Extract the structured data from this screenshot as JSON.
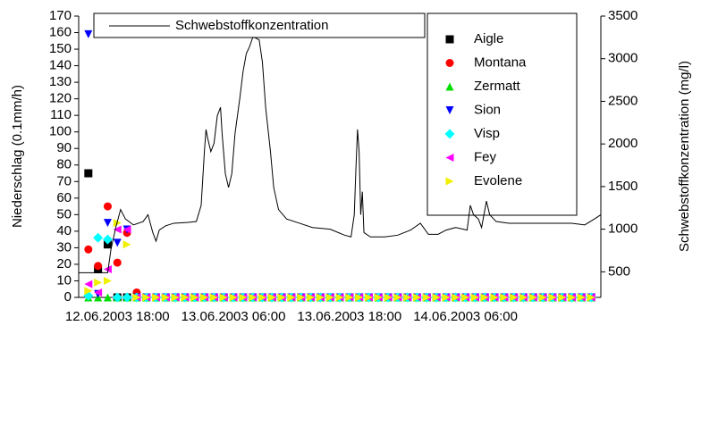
{
  "chart_data": [
    {
      "type": "scatter",
      "ylabel": "Niederschlag (0.1mm/h)",
      "xlim": [
        "2003-06-12T14:00",
        "2003-06-14T20:00"
      ],
      "xticks": [
        {
          "value": "2003-06-12T18:00",
          "label": "12.06.2003 18:00"
        },
        {
          "value": "2003-06-13T06:00",
          "label": "13.06.2003 06:00"
        },
        {
          "value": "2003-06-13T18:00",
          "label": "13.06.2003 18:00"
        },
        {
          "value": "2003-06-14T06:00",
          "label": "14.06.2003 06:00"
        }
      ],
      "ylim": [
        0,
        170
      ],
      "yticks": [
        0,
        10,
        20,
        30,
        40,
        50,
        60,
        70,
        80,
        90,
        100,
        110,
        120,
        130,
        140,
        150,
        160,
        170
      ],
      "x": [
        "2003-06-12T15:00",
        "2003-06-12T16:00",
        "2003-06-12T17:00",
        "2003-06-12T18:00",
        "2003-06-12T19:00",
        "2003-06-12T20:00",
        "2003-06-12T21:00",
        "2003-06-12T22:00",
        "2003-06-12T23:00",
        "2003-06-13T00:00",
        "2003-06-13T01:00",
        "2003-06-13T02:00",
        "2003-06-13T03:00",
        "2003-06-13T04:00",
        "2003-06-13T05:00",
        "2003-06-13T06:00",
        "2003-06-13T07:00",
        "2003-06-13T08:00",
        "2003-06-13T09:00",
        "2003-06-13T10:00",
        "2003-06-13T11:00",
        "2003-06-13T12:00",
        "2003-06-13T13:00",
        "2003-06-13T14:00",
        "2003-06-13T15:00",
        "2003-06-13T16:00",
        "2003-06-13T17:00",
        "2003-06-13T18:00",
        "2003-06-13T19:00",
        "2003-06-13T20:00",
        "2003-06-13T21:00",
        "2003-06-13T22:00",
        "2003-06-13T23:00",
        "2003-06-14T00:00",
        "2003-06-14T01:00",
        "2003-06-14T02:00",
        "2003-06-14T03:00",
        "2003-06-14T04:00",
        "2003-06-14T05:00",
        "2003-06-14T06:00",
        "2003-06-14T07:00",
        "2003-06-14T08:00",
        "2003-06-14T09:00",
        "2003-06-14T10:00",
        "2003-06-14T11:00",
        "2003-06-14T12:00",
        "2003-06-14T13:00",
        "2003-06-14T14:00",
        "2003-06-14T15:00",
        "2003-06-14T16:00",
        "2003-06-14T17:00",
        "2003-06-14T18:00",
        "2003-06-14T19:00"
      ],
      "series": [
        {
          "name": "Aigle",
          "color": "#000000",
          "marker": "square",
          "values": [
            75,
            17,
            32,
            0,
            0,
            0,
            0,
            0,
            0,
            0,
            0,
            0,
            0,
            0,
            0,
            0,
            0,
            0,
            0,
            0,
            0,
            0,
            0,
            0,
            0,
            0,
            0,
            0,
            0,
            0,
            0,
            0,
            0,
            0,
            0,
            0,
            0,
            0,
            0,
            0,
            0,
            0,
            0,
            0,
            0,
            0,
            0,
            0,
            0,
            0,
            0,
            0,
            0
          ]
        },
        {
          "name": "Montana",
          "color": "#ff0000",
          "marker": "circle",
          "values": [
            29,
            19,
            55,
            21,
            39,
            3,
            0,
            0,
            0,
            0,
            0,
            0,
            0,
            0,
            0,
            0,
            0,
            0,
            0,
            0,
            0,
            0,
            0,
            0,
            0,
            0,
            0,
            0,
            0,
            0,
            0,
            0,
            0,
            0,
            0,
            0,
            0,
            0,
            0,
            0,
            0,
            0,
            0,
            0,
            0,
            0,
            0,
            0,
            0,
            0,
            0,
            0,
            0
          ]
        },
        {
          "name": "Zermatt",
          "color": "#00e000",
          "marker": "triangle-up",
          "values": [
            0,
            0,
            0,
            0,
            0,
            0,
            0,
            0,
            0,
            0,
            0,
            0,
            0,
            0,
            0,
            0,
            0,
            0,
            0,
            0,
            0,
            0,
            0,
            0,
            0,
            0,
            0,
            0,
            0,
            0,
            0,
            0,
            0,
            0,
            0,
            0,
            0,
            0,
            0,
            0,
            0,
            0,
            0,
            0,
            0,
            0,
            0,
            0,
            0,
            0,
            0,
            0,
            0
          ]
        },
        {
          "name": "Sion",
          "color": "#0000ff",
          "marker": "triangle-down",
          "values": [
            159,
            2,
            45,
            33,
            41,
            0,
            0,
            0,
            0,
            0,
            0,
            0,
            0,
            0,
            0,
            0,
            0,
            0,
            0,
            0,
            0,
            0,
            0,
            0,
            0,
            0,
            0,
            0,
            0,
            0,
            0,
            0,
            0,
            0,
            0,
            0,
            0,
            0,
            0,
            0,
            0,
            0,
            0,
            0,
            0,
            0,
            0,
            0,
            0,
            0,
            0,
            0,
            0
          ]
        },
        {
          "name": "Visp",
          "color": "#00ffff",
          "marker": "diamond",
          "values": [
            1,
            36,
            35,
            0,
            0,
            0,
            0,
            0,
            0,
            0,
            0,
            0,
            0,
            0,
            0,
            0,
            0,
            0,
            0,
            0,
            0,
            0,
            0,
            0,
            0,
            0,
            0,
            0,
            0,
            0,
            0,
            0,
            0,
            0,
            0,
            0,
            0,
            0,
            0,
            0,
            0,
            0,
            0,
            0,
            0,
            0,
            0,
            0,
            0,
            0,
            0,
            0,
            0
          ]
        },
        {
          "name": "Fey",
          "color": "#ff00ff",
          "marker": "triangle-left",
          "values": [
            8,
            3,
            17,
            41,
            41,
            0,
            0,
            0,
            0,
            0,
            0,
            0,
            0,
            0,
            0,
            0,
            0,
            0,
            0,
            0,
            0,
            0,
            0,
            0,
            0,
            0,
            0,
            0,
            0,
            0,
            0,
            0,
            0,
            0,
            0,
            0,
            0,
            0,
            0,
            0,
            0,
            0,
            0,
            0,
            0,
            0,
            0,
            0,
            0,
            0,
            0,
            0,
            0
          ]
        },
        {
          "name": "Evolene",
          "color": "#f0f000",
          "marker": "triangle-right",
          "values": [
            4,
            9,
            10,
            45,
            32,
            0,
            0,
            0,
            0,
            0,
            0,
            0,
            0,
            0,
            0,
            0,
            0,
            0,
            0,
            0,
            0,
            0,
            0,
            0,
            0,
            0,
            0,
            0,
            0,
            0,
            0,
            0,
            0,
            0,
            0,
            0,
            0,
            0,
            0,
            0,
            0,
            0,
            0,
            0,
            0,
            0,
            0,
            0,
            0,
            0,
            0,
            0,
            0
          ]
        }
      ]
    },
    {
      "type": "line",
      "y2label": "Schwebstoffkonzentration (mg/l)",
      "y2lim": [
        200,
        3500
      ],
      "y2ticks": [
        500,
        1000,
        1500,
        2000,
        2500,
        3000,
        3500
      ],
      "x": [
        "2003-06-12T14:00",
        "2003-06-12T17:00",
        "2003-06-12T17:20",
        "2003-06-12T17:50",
        "2003-06-12T18:20",
        "2003-06-12T18:50",
        "2003-06-12T19:40",
        "2003-06-12T20:40",
        "2003-06-12T21:10",
        "2003-06-12T21:40",
        "2003-06-12T22:00",
        "2003-06-12T22:20",
        "2003-06-12T23:00",
        "2003-06-12T23:50",
        "2003-06-13T01:20",
        "2003-06-13T02:10",
        "2003-06-13T02:40",
        "2003-06-13T03:00",
        "2003-06-13T03:10",
        "2003-06-13T03:20",
        "2003-06-13T03:40",
        "2003-06-13T04:00",
        "2003-06-13T04:20",
        "2003-06-13T04:40",
        "2003-06-13T04:50",
        "2003-06-13T05:10",
        "2003-06-13T05:30",
        "2003-06-13T05:50",
        "2003-06-13T06:10",
        "2003-06-13T06:40",
        "2003-06-13T07:00",
        "2003-06-13T07:20",
        "2003-06-13T07:40",
        "2003-06-13T08:00",
        "2003-06-13T08:10",
        "2003-06-13T08:40",
        "2003-06-13T09:00",
        "2003-06-13T09:20",
        "2003-06-13T09:50",
        "2003-06-13T10:10",
        "2003-06-13T10:40",
        "2003-06-13T11:30",
        "2003-06-13T12:50",
        "2003-06-13T14:10",
        "2003-06-13T16:00",
        "2003-06-13T17:30",
        "2003-06-13T18:10",
        "2003-06-13T18:30",
        "2003-06-13T18:40",
        "2003-06-13T18:50",
        "2003-06-13T19:00",
        "2003-06-13T19:10",
        "2003-06-13T19:20",
        "2003-06-13T19:30",
        "2003-06-13T20:10",
        "2003-06-13T21:40",
        "2003-06-13T23:00",
        "2003-06-14T00:20",
        "2003-06-14T01:20",
        "2003-06-14T02:10",
        "2003-06-14T03:10",
        "2003-06-14T04:00",
        "2003-06-14T05:00",
        "2003-06-14T06:10",
        "2003-06-14T06:30",
        "2003-06-14T06:50",
        "2003-06-14T07:20",
        "2003-06-14T07:40",
        "2003-06-14T08:10",
        "2003-06-14T08:30",
        "2003-06-14T09:10",
        "2003-06-14T10:30",
        "2003-06-14T12:20",
        "2003-06-14T14:10",
        "2003-06-14T17:00",
        "2003-06-14T18:20",
        "2003-06-14T19:20",
        "2003-06-14T20:00"
      ],
      "series": [
        {
          "name": "Schwebstoffkonzentration",
          "color": "#000000",
          "axis": "y2",
          "values": [
            490,
            490,
            760,
            1020,
            1230,
            1120,
            1050,
            1090,
            1170,
            960,
            860,
            990,
            1040,
            1070,
            1080,
            1090,
            1280,
            1910,
            2170,
            2070,
            1910,
            2010,
            2330,
            2430,
            2120,
            1650,
            1490,
            1650,
            2120,
            2540,
            2850,
            3060,
            3140,
            3250,
            3250,
            3220,
            2960,
            2430,
            1910,
            1490,
            1230,
            1120,
            1070,
            1020,
            1000,
            930,
            910,
            1170,
            1700,
            2170,
            1910,
            1170,
            1440,
            960,
            910,
            910,
            930,
            990,
            1070,
            940,
            940,
            990,
            1020,
            990,
            1280,
            1170,
            1120,
            1020,
            1330,
            1170,
            1090,
            1070,
            1070,
            1070,
            1070,
            1050,
            1120,
            1170
          ]
        }
      ]
    }
  ]
}
